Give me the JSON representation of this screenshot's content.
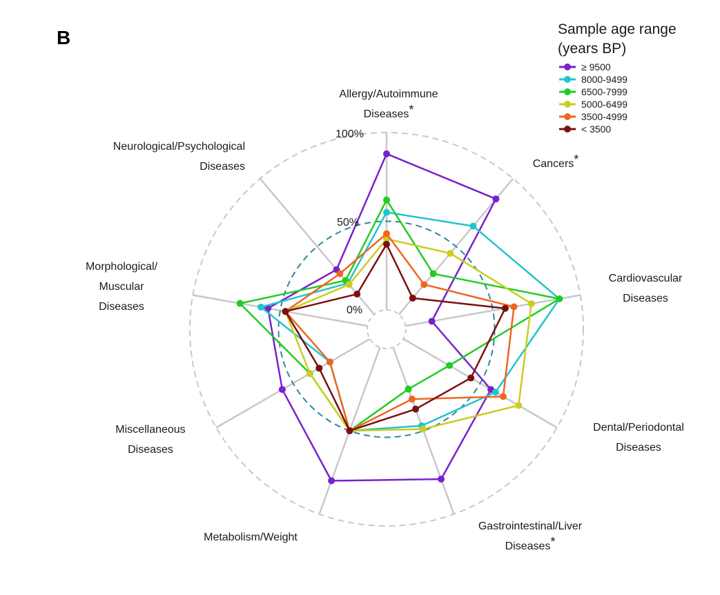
{
  "panel_label": "B",
  "chart_data": {
    "type": "radar",
    "title": "",
    "rlim": [
      0,
      100
    ],
    "grid_labels": [
      "100%",
      "50%",
      "0%"
    ],
    "legend": {
      "title_line1": "Sample age range",
      "title_line2": "(years BP)",
      "placement": "top-right"
    },
    "axes": [
      {
        "line1": "Allergy/Autoimmune",
        "line2": "Diseases",
        "star": "*"
      },
      {
        "line1": "Cancers",
        "line2": "",
        "star": "*"
      },
      {
        "line1": "Cardiovascular",
        "line2": "Diseases",
        "star": ""
      },
      {
        "line1": "Dental/Periodontal",
        "line2": "Diseases",
        "star": ""
      },
      {
        "line1": "Gastrointestinal/Liver",
        "line2": "Diseases",
        "star": "*"
      },
      {
        "line1": "Metabolism/Weight",
        "line2": "",
        "star": ""
      },
      {
        "line1": "Miscellaneous",
        "line2": "Diseases",
        "star": ""
      },
      {
        "line1": "Morphological/",
        "line2": "Muscular",
        "line3": "Diseases",
        "star": ""
      },
      {
        "line1": "Neurological/Psychological",
        "line2": "Diseases",
        "star": ""
      }
    ],
    "series": [
      {
        "name": "≥ 9500",
        "color": "#7722cc",
        "values": [
          88,
          85,
          15,
          57,
          79,
          80,
          57,
          57,
          33
        ]
      },
      {
        "name": "8000-9499",
        "color": "#22c4cc",
        "values": [
          55,
          65,
          88,
          60,
          47,
          50,
          26,
          61,
          23
        ]
      },
      {
        "name": "6500-7999",
        "color": "#22cc22",
        "values": [
          62,
          30,
          88,
          30,
          25,
          50,
          39,
          73,
          25
        ]
      },
      {
        "name": "5000-6499",
        "color": "#cccc22",
        "values": [
          40,
          45,
          72,
          75,
          49,
          50,
          39,
          47,
          22
        ]
      },
      {
        "name": "3500-4999",
        "color": "#ee6622",
        "values": [
          43,
          22,
          62,
          65,
          31,
          50,
          26,
          47,
          30
        ]
      },
      {
        "name": "< 3500",
        "color": "#7a1010",
        "values": [
          37,
          12,
          57,
          44,
          37,
          50,
          33,
          47,
          15
        ]
      }
    ]
  }
}
